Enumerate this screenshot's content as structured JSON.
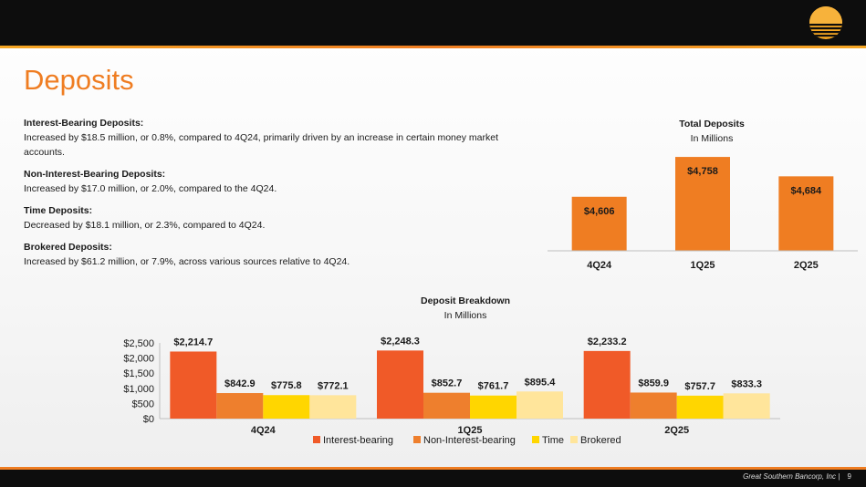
{
  "slide": {
    "title": "Deposits",
    "footer_company": "Great Southern Bancorp, Inc",
    "footer_separator": "|",
    "page_number": "9"
  },
  "colors": {
    "accent_orange": "#ef7d22",
    "header_bg": "#0d0d0d"
  },
  "bullets": [
    {
      "heading": "Interest-Bearing Deposits:",
      "text": "Increased by $18.5 million, or 0.8%, compared to 4Q24, primarily driven by an increase in certain money market accounts."
    },
    {
      "heading": "Non-Interest-Bearing Deposits:",
      "text": "Increased by $17.0 million, or 2.0%, compared to the 4Q24."
    },
    {
      "heading": "Time Deposits:",
      "text": "Decreased by $18.1 million, or 2.3%, compared to 4Q24."
    },
    {
      "heading": "Brokered Deposits:",
      "text": "Increased by $61.2 million, or 7.9%, across various sources relative to 4Q24."
    }
  ],
  "chart_data": [
    {
      "type": "bar",
      "title": "Total Deposits",
      "subtitle": "In Millions",
      "categories": [
        "4Q24",
        "1Q25",
        "2Q25"
      ],
      "values": [
        4606,
        4758,
        4684
      ],
      "data_labels": [
        "$4,606",
        "$4,758",
        "$4,684"
      ],
      "ylim": [
        4400,
        4800
      ],
      "grid": false,
      "bar_color": "#ef7d22"
    },
    {
      "type": "bar",
      "title": "Deposit Breakdown",
      "subtitle": "In Millions",
      "categories": [
        "4Q24",
        "1Q25",
        "2Q25"
      ],
      "series": [
        {
          "name": "Interest-bearing",
          "color": "#f05a28",
          "values": [
            2214.7,
            2248.3,
            2233.2
          ],
          "data_labels": [
            "$2,214.7",
            "$2,248.3",
            "$2,233.2"
          ]
        },
        {
          "name": "Non-Interest-bearing",
          "color": "#ee7f2d",
          "values": [
            842.9,
            852.7,
            859.9
          ],
          "data_labels": [
            "$842.9",
            "$852.7",
            "$859.9"
          ]
        },
        {
          "name": "Time",
          "color": "#ffd600",
          "values": [
            775.8,
            761.7,
            757.7
          ],
          "data_labels": [
            "$775.8",
            "$761.7",
            "$757.7"
          ]
        },
        {
          "name": "Brokered",
          "color": "#ffe59b",
          "values": [
            772.1,
            895.4,
            833.3
          ],
          "data_labels": [
            "$772.1",
            "$895.4",
            "$833.3"
          ]
        }
      ],
      "yticks": [
        "$0",
        "$500",
        "$1,000",
        "$1,500",
        "$2,000",
        "$2,500"
      ],
      "ylim": [
        0,
        2500
      ],
      "grid": false,
      "legend": "bottom"
    }
  ]
}
